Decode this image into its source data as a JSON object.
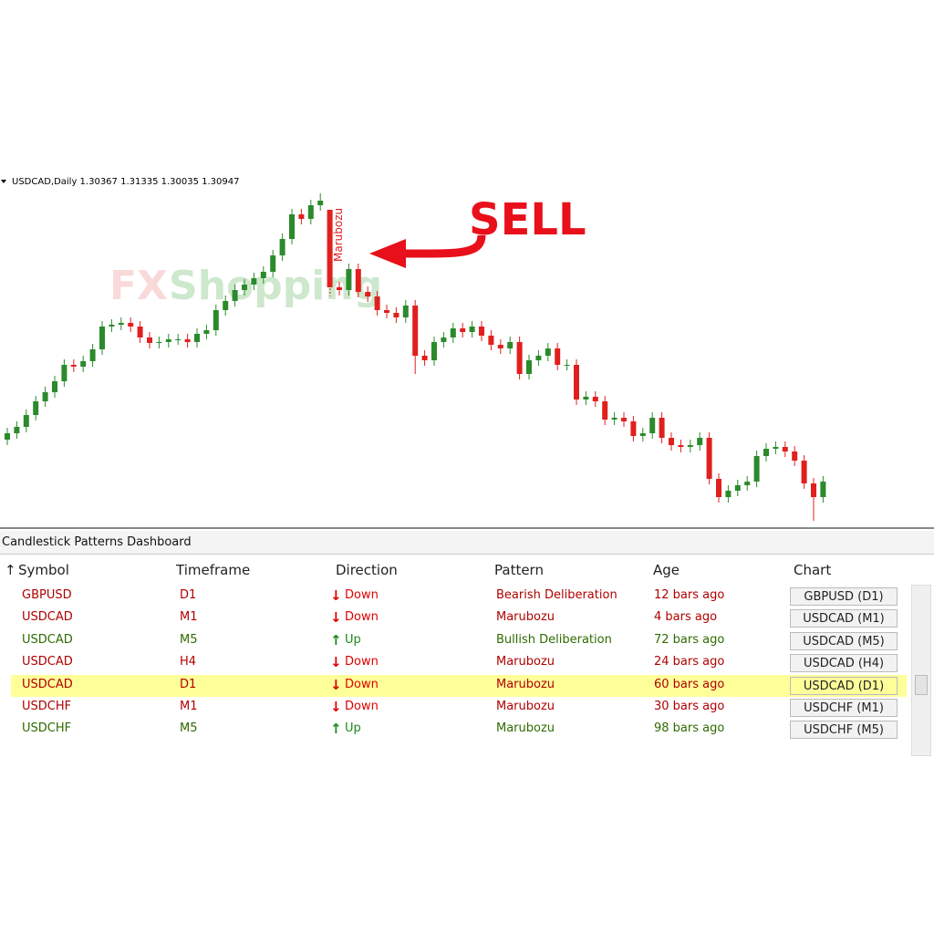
{
  "chart_data": {
    "type": "candlestick",
    "up_color": "#2b8a2b",
    "down_color": "#e0201e",
    "ylim": [
      0,
      400
    ],
    "open": [
      98,
      105,
      112,
      125,
      140,
      150,
      162,
      180,
      178,
      184,
      197,
      222,
      224,
      226,
      222,
      210,
      204,
      205,
      208,
      208,
      205,
      214,
      218,
      240,
      250,
      262,
      268,
      275,
      282,
      300,
      318,
      345,
      340,
      355,
      350,
      265,
      262,
      285,
      260,
      255,
      240,
      237,
      232,
      245,
      190,
      185,
      205,
      210,
      220,
      216,
      222,
      212,
      202,
      198,
      205,
      170,
      185,
      190,
      198,
      180,
      180,
      142,
      145,
      140,
      120,
      122,
      118,
      102,
      105,
      122,
      100,
      92,
      90,
      92,
      100,
      55,
      35,
      42,
      48,
      52,
      80,
      88,
      90,
      85,
      75,
      50,
      35
    ],
    "high": [
      111,
      118,
      131,
      146,
      156,
      168,
      186,
      186,
      190,
      203,
      228,
      230,
      232,
      232,
      228,
      216,
      211,
      214,
      214,
      214,
      220,
      224,
      246,
      256,
      268,
      274,
      281,
      288,
      306,
      324,
      351,
      351,
      361,
      368,
      350,
      271,
      291,
      291,
      266,
      261,
      246,
      243,
      251,
      251,
      196,
      211,
      216,
      226,
      226,
      228,
      228,
      218,
      208,
      211,
      211,
      191,
      196,
      204,
      204,
      186,
      186,
      151,
      151,
      146,
      128,
      128,
      124,
      111,
      128,
      128,
      106,
      98,
      98,
      106,
      106,
      61,
      48,
      54,
      58,
      86,
      94,
      96,
      96,
      91,
      81,
      56,
      58
    ],
    "low": [
      92,
      99,
      106,
      119,
      134,
      144,
      156,
      172,
      172,
      178,
      191,
      216,
      218,
      216,
      204,
      198,
      198,
      199,
      202,
      199,
      199,
      208,
      212,
      234,
      244,
      256,
      262,
      269,
      276,
      294,
      312,
      334,
      334,
      349,
      265,
      256,
      256,
      254,
      249,
      234,
      231,
      226,
      226,
      170,
      179,
      179,
      199,
      204,
      210,
      210,
      206,
      196,
      192,
      192,
      164,
      164,
      179,
      184,
      174,
      174,
      136,
      136,
      134,
      114,
      114,
      112,
      96,
      96,
      99,
      94,
      86,
      84,
      84,
      86,
      49,
      29,
      29,
      36,
      42,
      46,
      74,
      82,
      79,
      69,
      44,
      9,
      29
    ],
    "close": [
      105,
      112,
      125,
      140,
      150,
      162,
      180,
      178,
      184,
      197,
      222,
      224,
      226,
      222,
      210,
      204,
      205,
      208,
      208,
      205,
      214,
      218,
      240,
      250,
      262,
      268,
      275,
      282,
      300,
      318,
      345,
      340,
      355,
      360,
      265,
      262,
      285,
      260,
      255,
      240,
      237,
      232,
      245,
      190,
      185,
      205,
      210,
      220,
      216,
      222,
      212,
      202,
      198,
      205,
      170,
      185,
      190,
      198,
      180,
      180,
      142,
      145,
      140,
      120,
      122,
      118,
      102,
      105,
      122,
      100,
      92,
      90,
      92,
      100,
      55,
      35,
      42,
      48,
      52,
      80,
      88,
      90,
      85,
      75,
      50,
      35,
      52
    ]
  },
  "chart_header": "USDCAD,Daily  1.30367 1.31335 1.30035 1.30947",
  "watermark": {
    "first": "FX",
    "second": "Shopping"
  },
  "signal": "SELL",
  "pattern_label": "Marubozu",
  "dashboard": {
    "title": "Candlestick Patterns Dashboard",
    "sort_indicator": "↑",
    "columns": [
      "Symbol",
      "Timeframe",
      "Direction",
      "Pattern",
      "Age",
      "Chart"
    ],
    "rows": [
      {
        "symbol": "GBPUSD",
        "timeframe": "D1",
        "arrow": "↓",
        "direction": "Down",
        "pattern": "Bearish Deliberation",
        "age": "12 bars ago",
        "button": "GBPUSD (D1)",
        "text_color": "#b00000",
        "arrow_color": "#e00000",
        "highlight": false
      },
      {
        "symbol": "USDCAD",
        "timeframe": "M1",
        "arrow": "↓",
        "direction": "Down",
        "pattern": "Marubozu",
        "age": "4 bars ago",
        "button": "USDCAD (M1)",
        "text_color": "#b00000",
        "arrow_color": "#e00000",
        "highlight": false
      },
      {
        "symbol": "USDCAD",
        "timeframe": "M5",
        "arrow": "↑",
        "direction": "Up",
        "pattern": "Bullish Deliberation",
        "age": "72 bars ago",
        "button": "USDCAD (M5)",
        "text_color": "#2e6b00",
        "arrow_color": "#1a8a1a",
        "highlight": false
      },
      {
        "symbol": "USDCAD",
        "timeframe": "H4",
        "arrow": "↓",
        "direction": "Down",
        "pattern": "Marubozu",
        "age": "24 bars ago",
        "button": "USDCAD (H4)",
        "text_color": "#b00000",
        "arrow_color": "#e00000",
        "highlight": false
      },
      {
        "symbol": "USDCAD",
        "timeframe": "D1",
        "arrow": "↓",
        "direction": "Down",
        "pattern": "Marubozu",
        "age": "60 bars ago",
        "button": "USDCAD (D1)",
        "text_color": "#b00000",
        "arrow_color": "#e00000",
        "highlight": true
      },
      {
        "symbol": "USDCHF",
        "timeframe": "M1",
        "arrow": "↓",
        "direction": "Down",
        "pattern": "Marubozu",
        "age": "30 bars ago",
        "button": "USDCHF (M1)",
        "text_color": "#b00000",
        "arrow_color": "#e00000",
        "highlight": false
      },
      {
        "symbol": "USDCHF",
        "timeframe": "M5",
        "arrow": "↑",
        "direction": "Up",
        "pattern": "Marubozu",
        "age": "98 bars ago",
        "button": "USDCHF (M5)",
        "text_color": "#2e6b00",
        "arrow_color": "#1a8a1a",
        "highlight": false
      }
    ]
  }
}
